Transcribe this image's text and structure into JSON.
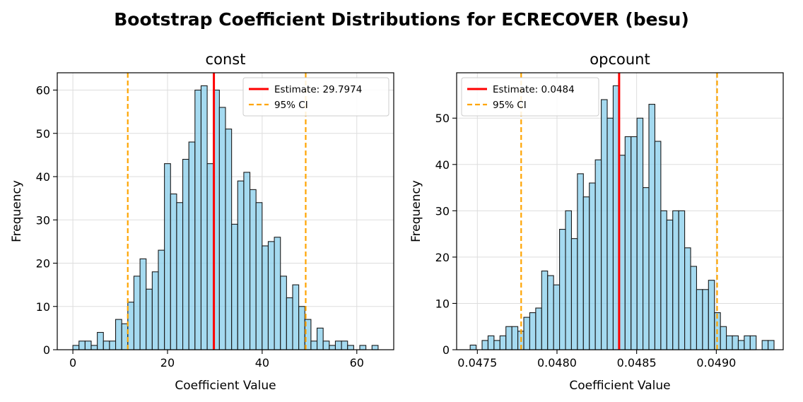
{
  "figure": {
    "title": "Bootstrap Coefficient Distributions for ECRECOVER (besu)"
  },
  "colors": {
    "bar_fill": "#87ceeb",
    "bar_edge": "#1a1a1a",
    "estimate": "#ff0000",
    "ci": "#ffa500",
    "grid": "#dddddd"
  },
  "chart_data": [
    {
      "type": "bar",
      "title": "const",
      "xlabel": "Coefficient Value",
      "ylabel": "Frequency",
      "xlim": [
        -3.3,
        67.8
      ],
      "ylim": [
        0,
        64
      ],
      "xticks": [
        0,
        20,
        40,
        60
      ],
      "xtick_labels": [
        "0",
        "20",
        "40",
        "60"
      ],
      "yticks": [
        0,
        10,
        20,
        30,
        40,
        50,
        60
      ],
      "ytick_labels": [
        "0",
        "10",
        "20",
        "30",
        "40",
        "50",
        "60"
      ],
      "bin_start": 0.0,
      "bin_width": 1.29,
      "counts": [
        1,
        2,
        2,
        1,
        4,
        2,
        2,
        7,
        6,
        11,
        17,
        21,
        14,
        18,
        23,
        43,
        36,
        34,
        44,
        48,
        60,
        61,
        43,
        60,
        56,
        51,
        29,
        39,
        41,
        37,
        34,
        24,
        25,
        26,
        17,
        12,
        15,
        10,
        7,
        2,
        5,
        2,
        1,
        2,
        2,
        1,
        0,
        1,
        0,
        1
      ],
      "estimate": 29.7974,
      "ci": [
        11.6,
        49.2
      ],
      "legend": {
        "position": "top-right",
        "estimate_label": "Estimate: 29.7974",
        "ci_label": "95% CI"
      },
      "grid": true
    },
    {
      "type": "bar",
      "title": "opcount",
      "xlabel": "Coefficient Value",
      "ylabel": "Frequency",
      "xlim": [
        0.04737,
        0.04942
      ],
      "ylim": [
        0,
        59.8
      ],
      "xticks": [
        0.0475,
        0.048,
        0.0485,
        0.049
      ],
      "xtick_labels": [
        "0.0475",
        "0.0480",
        "0.0485",
        "0.0490"
      ],
      "yticks": [
        0,
        10,
        20,
        30,
        40,
        50
      ],
      "ytick_labels": [
        "0",
        "10",
        "20",
        "30",
        "40",
        "50"
      ],
      "bin_start": 0.047455,
      "bin_width": 3.74e-05,
      "counts": [
        1,
        0,
        2,
        3,
        2,
        3,
        5,
        5,
        4,
        7,
        8,
        9,
        17,
        16,
        14,
        26,
        30,
        24,
        38,
        33,
        36,
        41,
        54,
        50,
        57,
        42,
        46,
        46,
        50,
        35,
        53,
        45,
        30,
        28,
        30,
        30,
        22,
        18,
        13,
        13,
        15,
        8,
        5,
        3,
        3,
        2,
        3,
        3,
        0,
        2,
        2
      ],
      "estimate": 0.04839,
      "ci": [
        0.047775,
        0.049005
      ],
      "legend": {
        "position": "top-left",
        "estimate_label": "Estimate: 0.0484",
        "ci_label": "95% CI"
      },
      "grid": true
    }
  ]
}
